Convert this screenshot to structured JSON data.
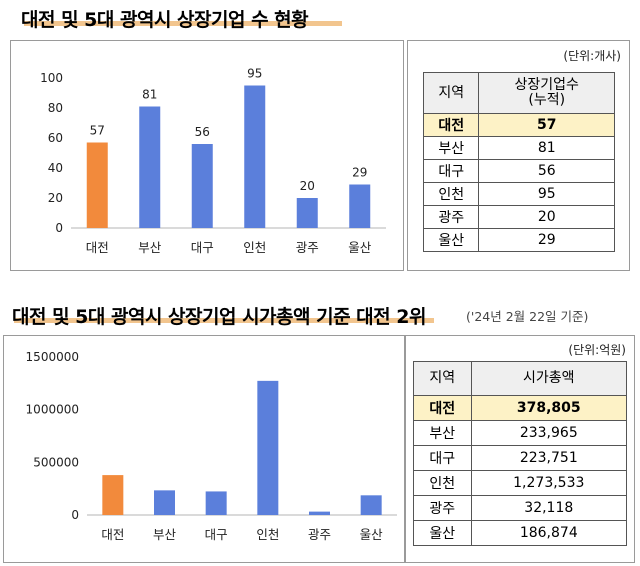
{
  "section1": {
    "title": "대전 및 5대 광역시 상장기업 수 현황",
    "unit": "(단위:개사)",
    "table": {
      "headers": [
        "지역",
        "상장기업수\n(누적)"
      ],
      "rows": [
        [
          "대전",
          "57"
        ],
        [
          "부산",
          "81"
        ],
        [
          "대구",
          "56"
        ],
        [
          "인천",
          "95"
        ],
        [
          "광주",
          "20"
        ],
        [
          "울산",
          "29"
        ]
      ]
    }
  },
  "section2": {
    "title": "대전 및 5대 광역시 상장기업 시가총액 기준 대전 2위",
    "asof": "('24년 2월 22일 기준)",
    "unit": "(단위:억원)",
    "table": {
      "headers": [
        "지역",
        "시가총액"
      ],
      "rows": [
        [
          "대전",
          "378,805"
        ],
        [
          "부산",
          "233,965"
        ],
        [
          "대구",
          "223,751"
        ],
        [
          "인천",
          "1,273,533"
        ],
        [
          "광주",
          "32,118"
        ],
        [
          "울산",
          "186,874"
        ]
      ]
    }
  },
  "colors": {
    "highlight": "#f28a3c",
    "bar": "#5b7fdb",
    "title_underline": "#f2c58e",
    "table_highlight": "#fdf2c6"
  },
  "chart_data": [
    {
      "type": "bar",
      "categories": [
        "대전",
        "부산",
        "대구",
        "인천",
        "광주",
        "울산"
      ],
      "values": [
        57,
        81,
        56,
        95,
        20,
        29
      ],
      "data_labels": [
        "57",
        "81",
        "56",
        "95",
        "20",
        "29"
      ],
      "ylim": [
        0,
        100
      ],
      "yticks": [
        0,
        20,
        40,
        60,
        80,
        100
      ],
      "ytick_labels": [
        "0",
        "20",
        "40",
        "60",
        "80",
        "100"
      ],
      "highlight_index": 0,
      "title": "",
      "xlabel": "",
      "ylabel": ""
    },
    {
      "type": "bar",
      "categories": [
        "대전",
        "부산",
        "대구",
        "인천",
        "광주",
        "울산"
      ],
      "values": [
        378805,
        233965,
        223751,
        1273533,
        32118,
        186874
      ],
      "ylim": [
        0,
        1500000
      ],
      "yticks": [
        0,
        500000,
        1000000,
        1500000
      ],
      "ytick_labels": [
        "0",
        "500000",
        "1000000",
        "1500000"
      ],
      "highlight_index": 0,
      "title": "",
      "xlabel": "",
      "ylabel": ""
    }
  ]
}
